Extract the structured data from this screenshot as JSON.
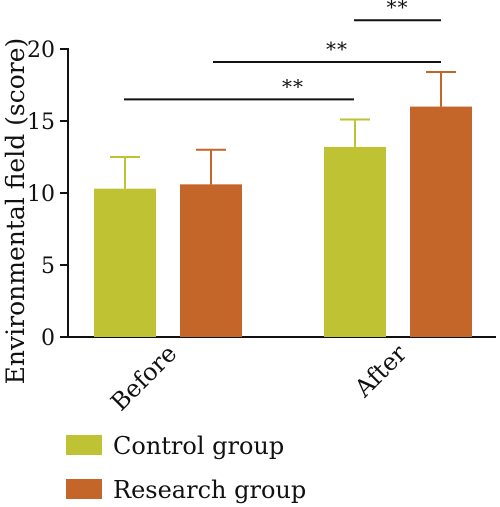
{
  "chart_data": {
    "type": "bar",
    "categories": [
      "Before",
      "After"
    ],
    "series": [
      {
        "name": "Control group",
        "values": [
          10.3,
          13.2
        ],
        "errors": [
          2.2,
          1.9
        ],
        "color": "#bfc232"
      },
      {
        "name": "Research group",
        "values": [
          10.6,
          16.0
        ],
        "errors": [
          2.4,
          2.4
        ],
        "color": "#c4652a"
      }
    ],
    "title": "",
    "xlabel": "",
    "ylabel": "Environmental field (score)",
    "ylim": [
      0,
      20
    ],
    "yticks": [
      0,
      5,
      10,
      15,
      20
    ],
    "grid": false,
    "legend": "bottom-left",
    "significance": [
      {
        "label": "**",
        "from": "Before · Control group",
        "to": "After · Control group",
        "y": 16.5
      },
      {
        "label": "**",
        "from": "Before · Research group",
        "to": "After · Research group",
        "y": 19.1
      },
      {
        "label": "**",
        "from": "After · Control group",
        "to": "After · Research group",
        "y": 22.0
      }
    ]
  }
}
